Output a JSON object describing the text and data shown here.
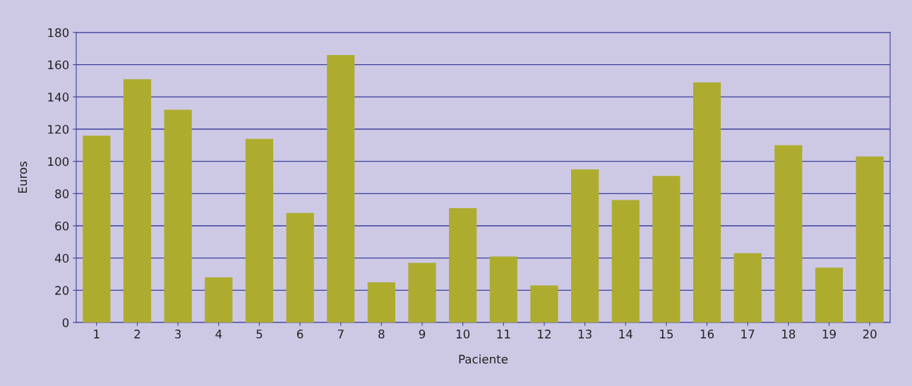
{
  "chart_data": {
    "type": "bar",
    "xlabel": "Paciente",
    "ylabel": "Euros",
    "categories": [
      "1",
      "2",
      "3",
      "4",
      "5",
      "6",
      "7",
      "8",
      "9",
      "10",
      "11",
      "12",
      "13",
      "14",
      "15",
      "16",
      "17",
      "18",
      "19",
      "20"
    ],
    "values": [
      116,
      151,
      132,
      28,
      114,
      68,
      166,
      25,
      37,
      71,
      41,
      23,
      95,
      76,
      91,
      149,
      43,
      110,
      34,
      103
    ],
    "color": "#aeac2f",
    "ylim": [
      0,
      180
    ],
    "yticks": [
      0,
      20,
      40,
      60,
      80,
      100,
      120,
      140,
      160,
      180
    ],
    "grid": "y"
  }
}
